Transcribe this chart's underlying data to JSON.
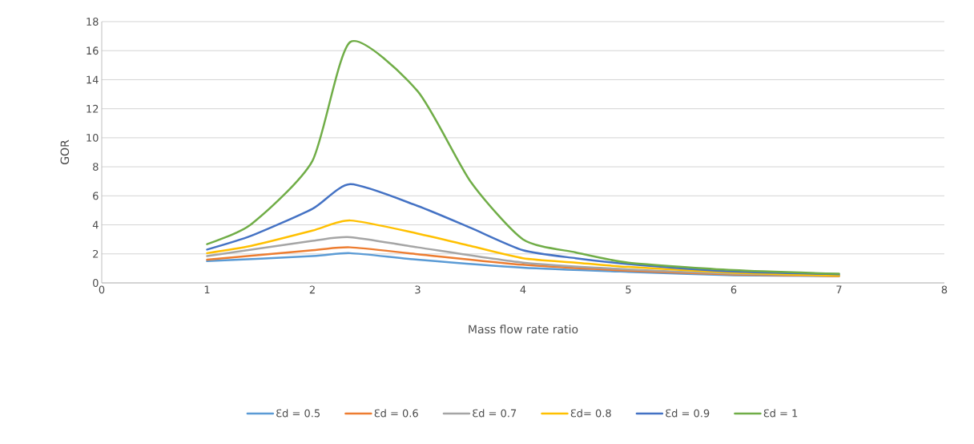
{
  "chart_data": {
    "type": "line",
    "xlabel": "Mass flow rate ratio",
    "ylabel": "GOR",
    "xlim": [
      0,
      8
    ],
    "xticks": [
      0,
      1,
      2,
      3,
      4,
      5,
      6,
      7,
      8
    ],
    "ylim": [
      0,
      18
    ],
    "yticks": [
      0,
      2,
      4,
      6,
      8,
      10,
      12,
      14,
      16,
      18
    ],
    "grid": "y",
    "legend": "bottom",
    "marker": "none",
    "line_style": "solid",
    "series": [
      {
        "name": "Ɛd = 0.5",
        "color": "#5b9bd5",
        "x": [
          1,
          2,
          2.36,
          3,
          4,
          5,
          6,
          7
        ],
        "values": [
          1.5,
          1.85,
          2.05,
          1.6,
          1.05,
          0.76,
          0.53,
          0.47
        ]
      },
      {
        "name": "Ɛd = 0.6",
        "color": "#ed7d31",
        "x": [
          1,
          2,
          2.36,
          3,
          4,
          5,
          6,
          7
        ],
        "values": [
          1.6,
          2.25,
          2.45,
          1.98,
          1.25,
          0.84,
          0.58,
          0.47
        ]
      },
      {
        "name": "Ɛd = 0.7",
        "color": "#a5a5a5",
        "x": [
          1,
          2,
          2.36,
          3,
          4,
          5,
          6,
          7
        ],
        "values": [
          1.85,
          2.9,
          3.15,
          2.45,
          1.4,
          0.93,
          0.63,
          0.5
        ]
      },
      {
        "name": "Ɛd= 0.8",
        "color": "#ffc000",
        "x": [
          1,
          1.42,
          2,
          2.36,
          3,
          3.5,
          4,
          4.5,
          5,
          6,
          7
        ],
        "values": [
          2.05,
          2.55,
          3.6,
          4.3,
          3.4,
          2.55,
          1.7,
          1.4,
          1.1,
          0.7,
          0.5
        ]
      },
      {
        "name": "Ɛd = 0.9",
        "color": "#4472c4",
        "x": [
          1,
          1.42,
          2,
          2.36,
          3,
          3.5,
          4,
          4.5,
          5,
          6,
          7
        ],
        "values": [
          2.3,
          3.25,
          5.1,
          6.8,
          5.3,
          3.8,
          2.25,
          1.7,
          1.3,
          0.78,
          0.6
        ]
      },
      {
        "name": "Ɛd = 1",
        "color": "#70ad47",
        "x": [
          1,
          1.42,
          2,
          2.36,
          3,
          3.5,
          4,
          4.5,
          5,
          6,
          7
        ],
        "values": [
          2.67,
          4.05,
          8.4,
          16.6,
          13.2,
          7.0,
          3.0,
          2.1,
          1.4,
          0.88,
          0.63
        ]
      }
    ]
  }
}
